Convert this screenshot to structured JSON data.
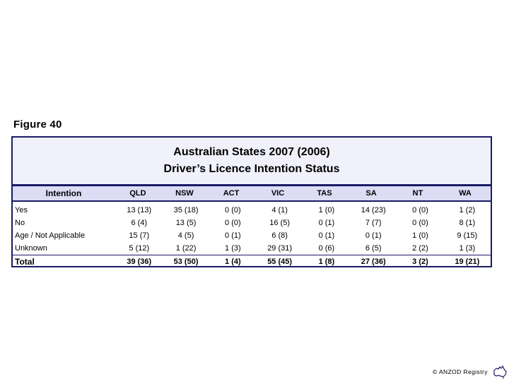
{
  "figure_label": "Figure 40",
  "title": {
    "line1": "Australian States  2007 (2006)",
    "line2": "Driver’s Licence Intention Status"
  },
  "columns": [
    "Intention",
    "QLD",
    "NSW",
    "ACT",
    "VIC",
    "TAS",
    "SA",
    "NT",
    "WA"
  ],
  "rows": [
    {
      "label": "Yes",
      "values": [
        "13 (13)",
        "35 (18)",
        "0 (0)",
        "4 (1)",
        "1 (0)",
        "14 (23)",
        "0 (0)",
        "1 (2)"
      ]
    },
    {
      "label": "No",
      "values": [
        "6 (4)",
        "13 (5)",
        "0 (0)",
        "16 (5)",
        "0 (1)",
        "7 (7)",
        "0 (0)",
        "8 (1)"
      ]
    },
    {
      "label": "Age / Not Applicable",
      "values": [
        "15 (7)",
        "4 (5)",
        "0 (1)",
        "6 (8)",
        "0 (1)",
        "0 (1)",
        "1 (0)",
        "9 (15)"
      ]
    },
    {
      "label": "Unknown",
      "values": [
        "5 (12)",
        "1 (22)",
        "1 (3)",
        "29 (31)",
        "0 (6)",
        "6 (5)",
        "2 (2)",
        "1 (3)"
      ]
    }
  ],
  "total": {
    "label": "Total",
    "values": [
      "39 (36)",
      "53 (50)",
      "1 (4)",
      "55 (45)",
      "1 (8)",
      "27 (36)",
      "3 (2)",
      "19 (21)"
    ]
  },
  "footer": {
    "registry": "© ANZOD Registry"
  },
  "colors": {
    "border": "#1a1a66",
    "title_bg": "#f1f1fc",
    "header_bg": "#dcdcf5"
  }
}
